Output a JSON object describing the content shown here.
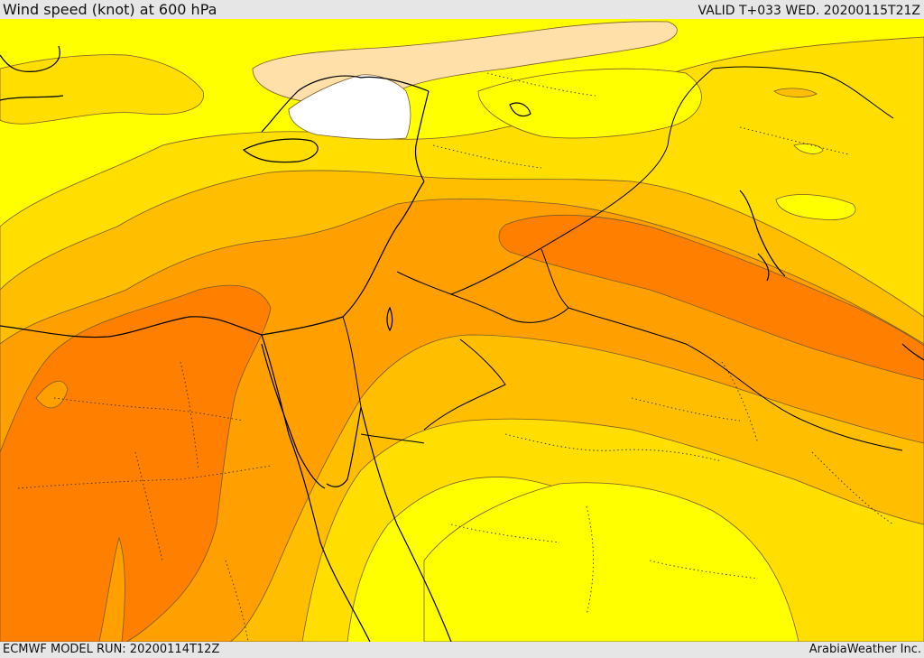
{
  "header": {
    "title": "Wind speed (knot) at 600 hPa",
    "valid": "VALID T+033 WED. 20200115T21Z"
  },
  "footer": {
    "model_run": "ECMWF MODEL RUN: 20200114T12Z",
    "credit": "ArabiaWeather Inc."
  },
  "map": {
    "colors": {
      "band_lowest": "#ffffff",
      "band_light": "#ffe0a8",
      "band_yellow": "#ffff00",
      "band_gold": "#ffde00",
      "band_amber": "#ffbf00",
      "band_orange": "#ffa000",
      "band_dark_orange": "#ff7f00",
      "contour_line": "#7a5a2a",
      "coastline": "#000000",
      "border": "#000000"
    }
  }
}
